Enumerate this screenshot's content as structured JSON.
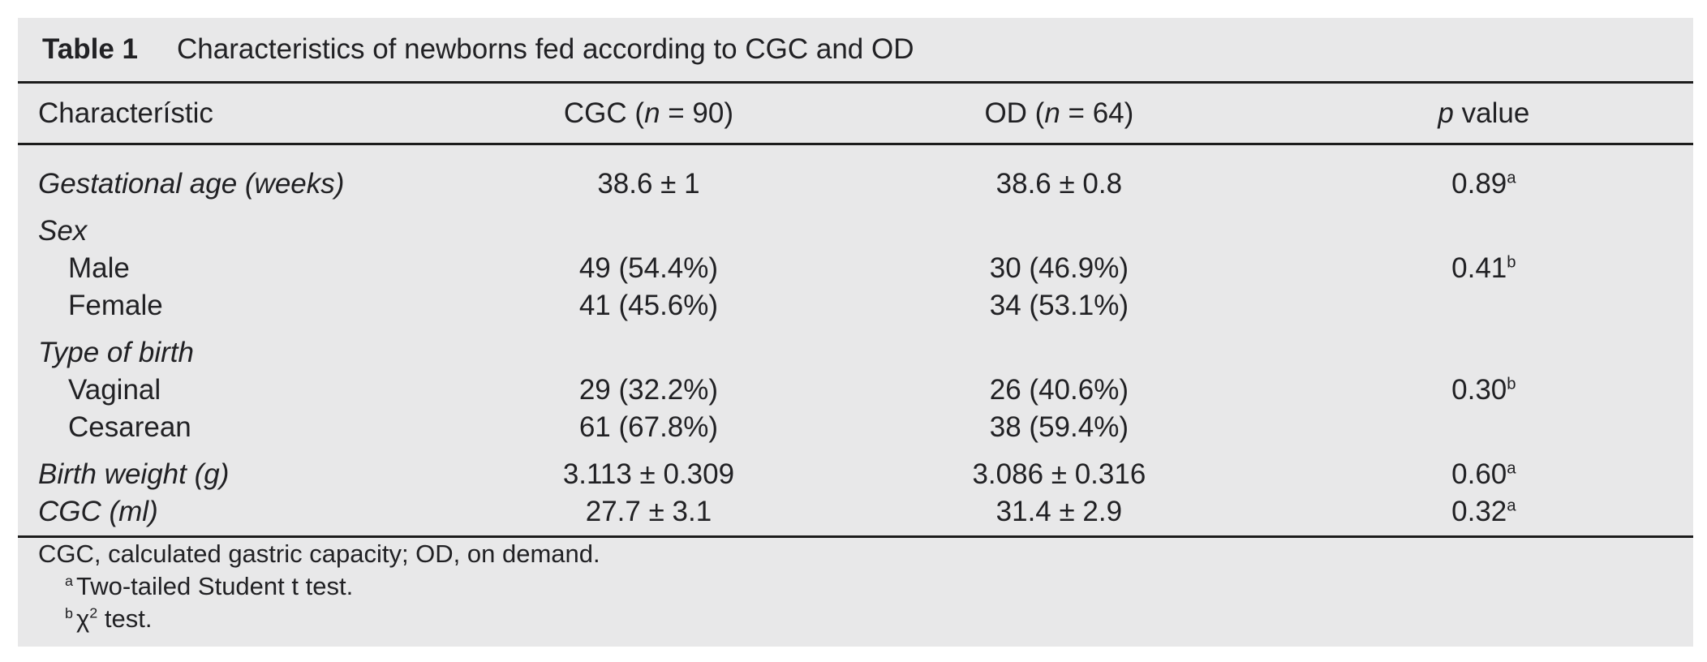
{
  "theme": {
    "page_bg": "#ffffff",
    "panel_bg": "#e8e8e9",
    "text_color": "#212124",
    "rule_color": "#1c1c1c"
  },
  "table": {
    "label": "Table 1",
    "title": "Characteristics of newborns fed according to CGC and OD",
    "header": {
      "characteristic": "Characterístic",
      "cgc": {
        "pre": "CGC (",
        "n": "n",
        "post": " = 90)"
      },
      "od": {
        "pre": "OD (",
        "n": "n",
        "post": " = 64)"
      },
      "p": {
        "italic": "p",
        "rest": " value"
      }
    },
    "rows": [
      {
        "label": "Gestational age (weeks)",
        "cgc": "38.6 ± 1",
        "od": "38.6 ± 0.8",
        "p": "0.89",
        "p_sup": "a"
      },
      {
        "label": "Sex"
      },
      {
        "label": "Male",
        "cgc": "49 (54.4%)",
        "od": "30 (46.9%)",
        "p": "0.41",
        "p_sup": "b"
      },
      {
        "label": "Female",
        "cgc": "41 (45.6%)",
        "od": "34 (53.1%)"
      },
      {
        "label": "Type of birth"
      },
      {
        "label": "Vaginal",
        "cgc": "29 (32.2%)",
        "od": "26 (40.6%)",
        "p": "0.30",
        "p_sup": "b"
      },
      {
        "label": "Cesarean",
        "cgc": "61 (67.8%)",
        "od": "38 (59.4%)"
      },
      {
        "label": "Birth weight (g)",
        "cgc": "3.113 ± 0.309",
        "od": "3.086 ± 0.316",
        "p": "0.60",
        "p_sup": "a"
      },
      {
        "label": "CGC (ml)",
        "cgc": "27.7 ± 3.1",
        "od": "31.4 ± 2.9",
        "p": "0.32",
        "p_sup": "a"
      }
    ],
    "footnotes": {
      "abbrev": "CGC, calculated gastric capacity; OD, on demand.",
      "a": {
        "marker": "a",
        "text": "Two-tailed Student t test."
      },
      "b": {
        "marker": "b",
        "chi": "χ",
        "exp": "2",
        "rest": " test."
      }
    }
  }
}
